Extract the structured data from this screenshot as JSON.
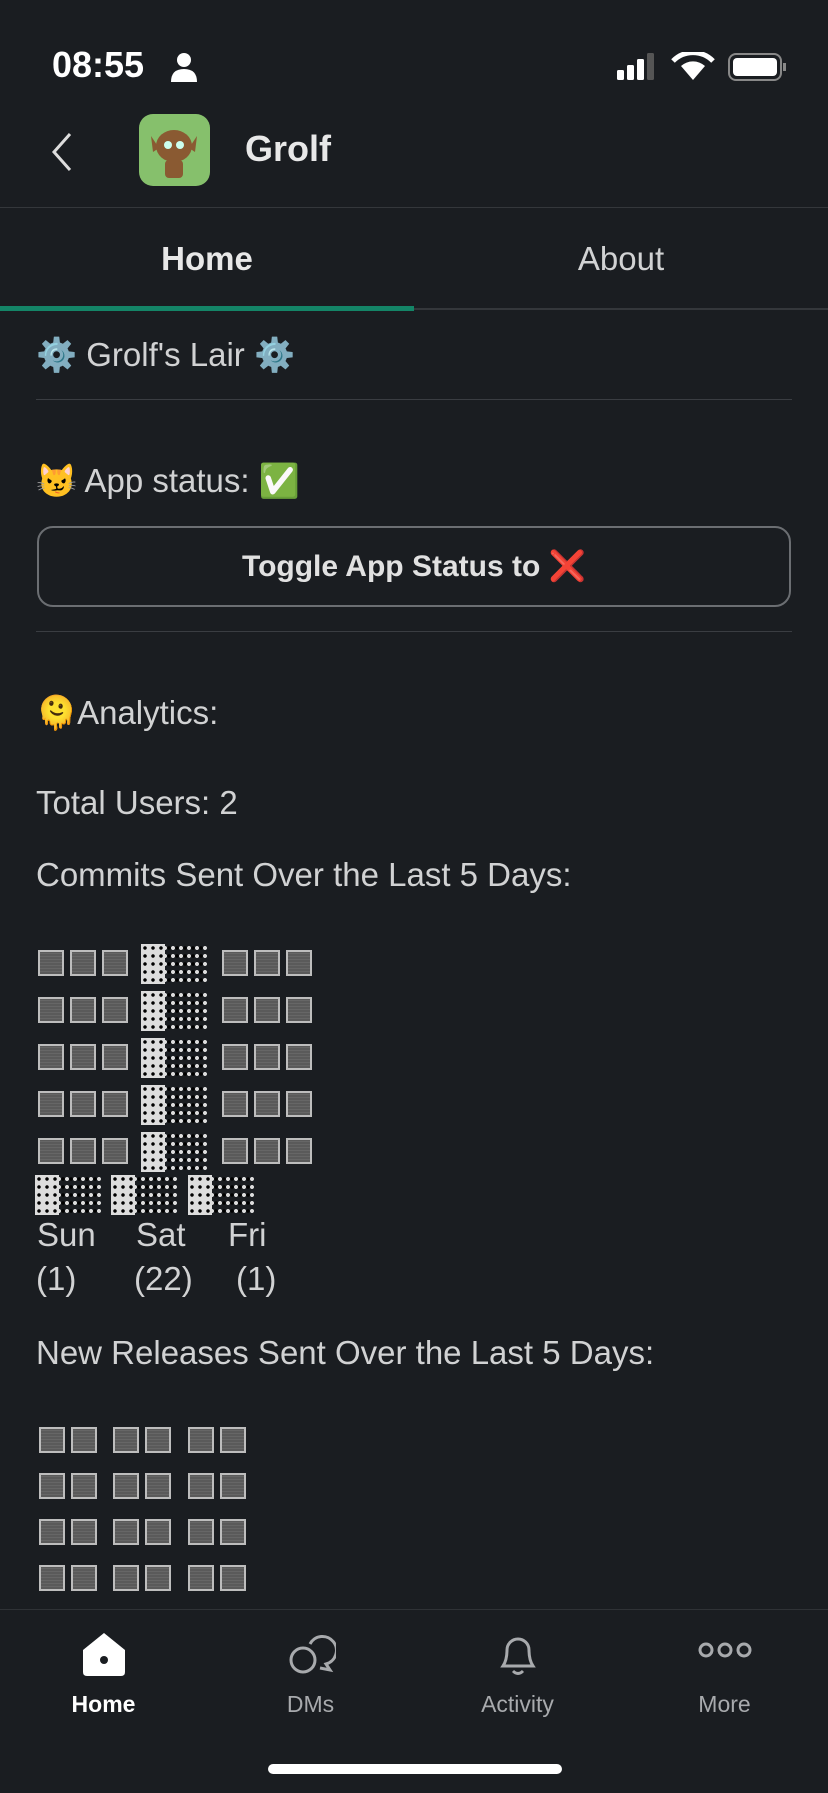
{
  "status_bar": {
    "time": "08:55"
  },
  "header": {
    "title": "Grolf"
  },
  "tabs": [
    {
      "label": "Home",
      "active": true
    },
    {
      "label": "About",
      "active": false
    }
  ],
  "content": {
    "lair_title": "Grolf's Lair",
    "app_status_label": "App status:",
    "app_status_icon": "✅",
    "toggle_button": "Toggle App Status to",
    "toggle_icon": "❌",
    "analytics_label": "Analytics:",
    "total_users": "Total Users: 2",
    "commits_title": "Commits Sent Over the Last 5 Days:",
    "commits": {
      "days": [
        "Sun",
        "Sat",
        "Fri"
      ],
      "counts": [
        "(1)",
        "(22)",
        "(1)"
      ],
      "values": [
        1,
        22,
        1
      ]
    },
    "releases_title": "New Releases Sent Over the Last 5 Days:"
  },
  "bottom_nav": [
    {
      "label": "Home",
      "icon": "home-icon",
      "active": true
    },
    {
      "label": "DMs",
      "icon": "dms-icon"
    },
    {
      "label": "Activity",
      "icon": "bell-icon"
    },
    {
      "label": "More",
      "icon": "more-icon"
    }
  ],
  "colors": {
    "background": "#1a1d21",
    "accent": "#148567"
  }
}
